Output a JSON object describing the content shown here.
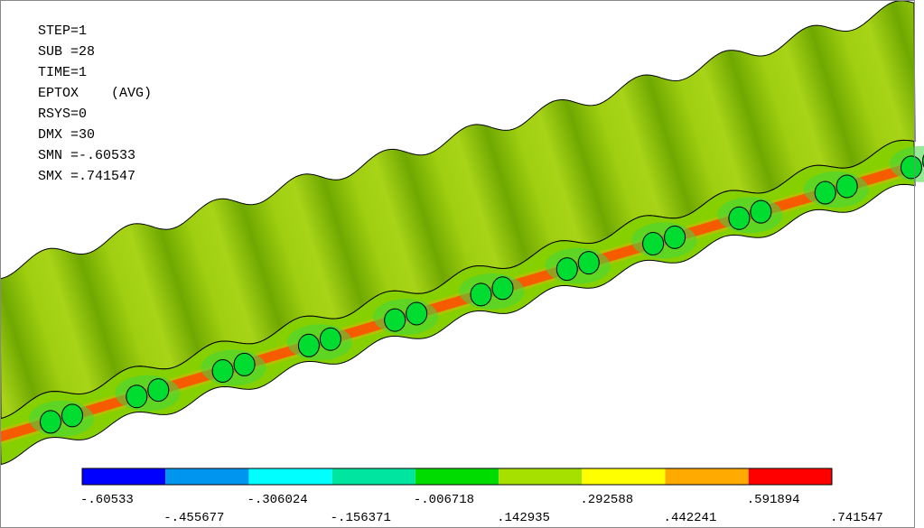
{
  "info": [
    "STEP=1",
    "SUB =28",
    "TIME=1",
    "EPTOX    (AVG)",
    "RSYS=0",
    "DMX =30",
    "SMN =-.60533",
    "SMX =.741547"
  ],
  "legend": {
    "labels": [
      "-.60533",
      "-.455677",
      "-.306024",
      "-.156371",
      "-.006718",
      ".142935",
      ".292588",
      ".442241",
      ".591894",
      ".741547"
    ],
    "colors": [
      "#0000ff",
      "#0096f0",
      "#00ffff",
      "#00e6a0",
      "#00dc00",
      "#a6e000",
      "#ffff00",
      "#ffaa00",
      "#ff0000"
    ]
  }
}
